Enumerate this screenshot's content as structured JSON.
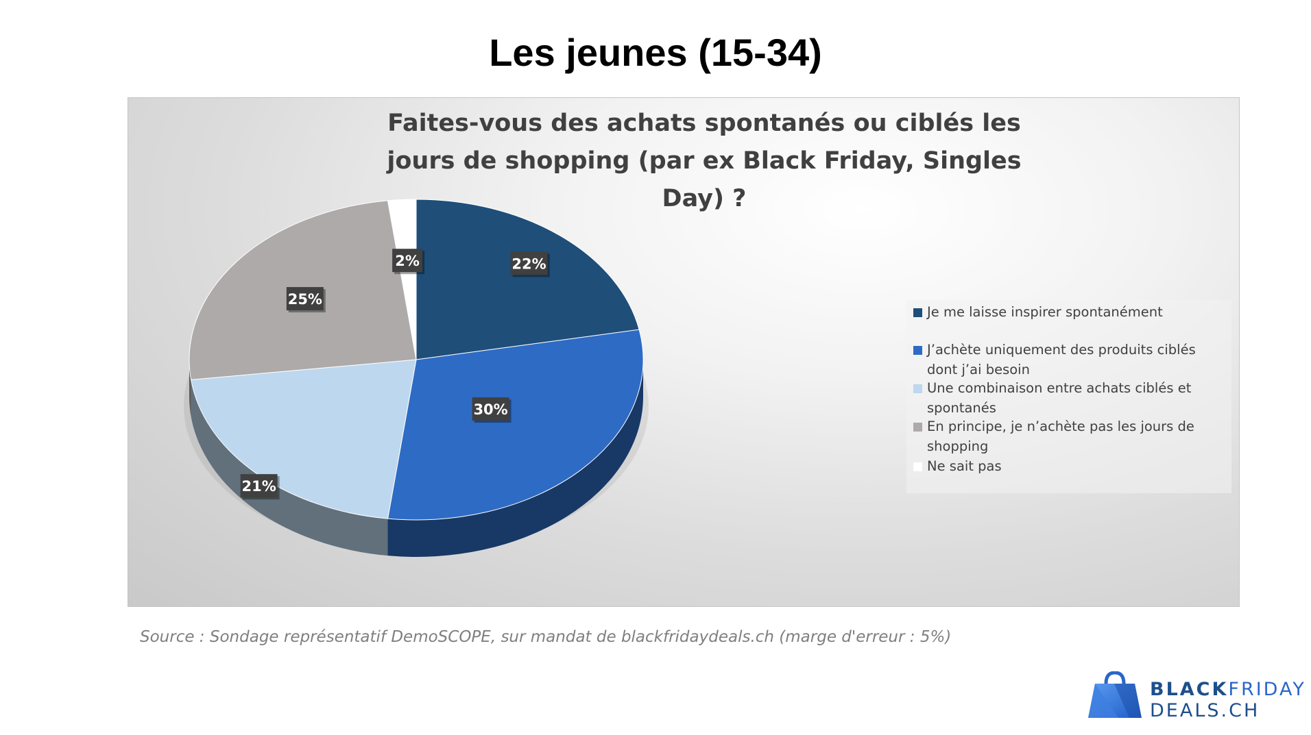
{
  "page": {
    "title": "Les jeunes (15-34)",
    "source_note": "Source : Sondage représentatif DemoSCOPE, sur mandat de blackfridaydeals.ch (marge d'erreur : 5%)"
  },
  "logo": {
    "line1_bold": "BLACK",
    "line1_regular": "FRIDAY",
    "line2_bold": "DEALS",
    "line2_regular": ".CH"
  },
  "chart_data": {
    "type": "pie",
    "style": "3d-pie",
    "title": "Faites-vous des achats spontanés ou ciblés les jours de shopping (par ex Black Friday, Singles Day) ?",
    "unit": "%",
    "legend_position": "right",
    "slices": [
      {
        "label": "Je me laisse inspirer spontanément",
        "value": 22,
        "display": "22%",
        "color": "#1f4e79"
      },
      {
        "label": "J’achète uniquement des produits ciblés dont j’ai besoin",
        "value": 30,
        "display": "30%",
        "color": "#2e6bc4"
      },
      {
        "label": "Une combinaison entre achats ciblés et spontanés",
        "value": 21,
        "display": "21%",
        "color": "#bdd7ee"
      },
      {
        "label": "En principe, je n’achète pas les jours de shopping",
        "value": 25,
        "display": "25%",
        "color": "#aeaaaa"
      },
      {
        "label": "Ne sait pas",
        "value": 2,
        "display": "2%",
        "color": "#ffffff"
      }
    ]
  }
}
